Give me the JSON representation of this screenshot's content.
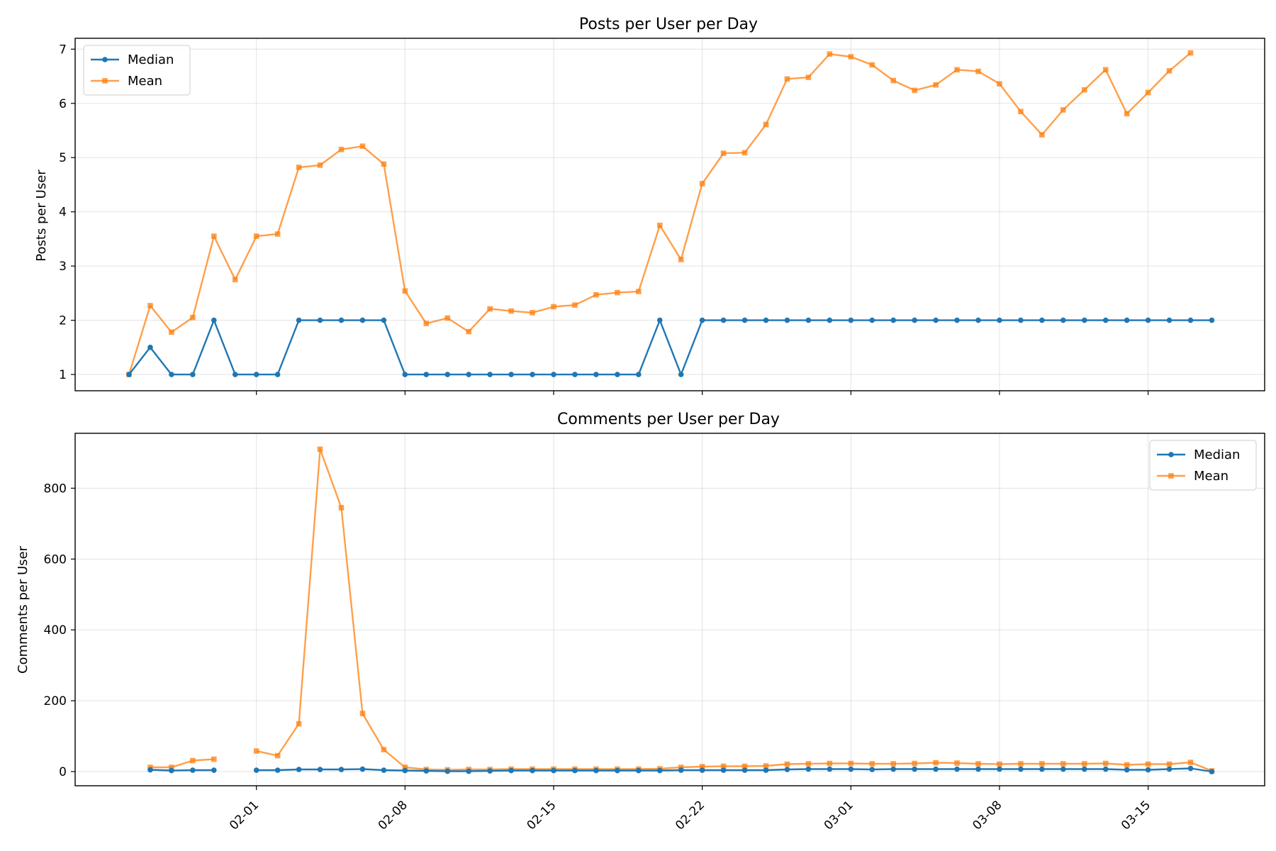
{
  "colors": {
    "median": "#1f77b4",
    "mean": "#ff7f0e"
  },
  "chart_data": [
    {
      "type": "line",
      "title": "Posts per User per Day",
      "xlabel": "",
      "ylabel": "Posts per User",
      "ylim": [
        0.7,
        7.2
      ],
      "yticks": [
        1,
        2,
        3,
        4,
        5,
        6,
        7
      ],
      "grid": true,
      "legend": "top-left",
      "x": [
        "01-26",
        "01-27",
        "01-28",
        "01-29",
        "01-30",
        "01-31",
        "02-01",
        "02-02",
        "02-03",
        "02-04",
        "02-05",
        "02-06",
        "02-07",
        "02-08",
        "02-09",
        "02-10",
        "02-11",
        "02-12",
        "02-13",
        "02-14",
        "02-15",
        "02-16",
        "02-17",
        "02-18",
        "02-19",
        "02-20",
        "02-21",
        "02-22",
        "02-23",
        "02-24",
        "02-25",
        "02-26",
        "02-27",
        "02-28",
        "03-01",
        "03-02",
        "03-03",
        "03-04",
        "03-05",
        "03-06",
        "03-07",
        "03-08",
        "03-09",
        "03-10",
        "03-11",
        "03-12",
        "03-13",
        "03-14",
        "03-15",
        "03-16",
        "03-17",
        "03-18"
      ],
      "series": [
        {
          "name": "Median",
          "marker": "circle",
          "values": [
            1,
            1.5,
            1,
            1,
            2,
            1,
            1,
            1,
            2,
            2,
            2,
            2,
            2,
            1,
            1,
            1,
            1,
            1,
            1,
            1,
            1,
            1,
            1,
            1,
            1,
            2,
            1,
            2,
            2,
            2,
            2,
            2,
            2,
            2,
            2,
            2,
            2,
            2,
            2,
            2,
            2,
            2,
            2,
            2,
            2,
            2,
            2,
            2,
            2,
            2,
            2,
            2
          ]
        },
        {
          "name": "Mean",
          "marker": "square",
          "values": [
            1,
            2.27,
            1.78,
            2.05,
            3.55,
            2.75,
            3.55,
            3.59,
            4.82,
            4.86,
            5.15,
            5.21,
            4.88,
            2.54,
            1.94,
            2.04,
            1.79,
            2.21,
            2.17,
            2.14,
            2.25,
            2.28,
            2.47,
            2.51,
            2.53,
            3.75,
            3.12,
            4.52,
            5.08,
            5.09,
            5.61,
            6.45,
            6.48,
            6.91,
            6.86,
            6.71,
            6.42,
            6.24,
            6.34,
            6.62,
            6.59,
            6.36,
            5.85,
            5.42,
            5.88,
            6.25,
            6.62,
            5.81,
            6.2,
            6.6,
            6.93,
            null
          ]
        }
      ]
    },
    {
      "type": "line",
      "title": "Comments per User per Day",
      "xlabel": "",
      "ylabel": "Comments per User",
      "ylim": [
        -40,
        955
      ],
      "yticks": [
        0,
        200,
        400,
        600,
        800
      ],
      "grid": true,
      "legend": "top-right",
      "x": [
        "01-26",
        "01-27",
        "01-28",
        "01-29",
        "01-30",
        "01-31",
        "02-01",
        "02-02",
        "02-03",
        "02-04",
        "02-05",
        "02-06",
        "02-07",
        "02-08",
        "02-09",
        "02-10",
        "02-11",
        "02-12",
        "02-13",
        "02-14",
        "02-15",
        "02-16",
        "02-17",
        "02-18",
        "02-19",
        "02-20",
        "02-21",
        "02-22",
        "02-23",
        "02-24",
        "02-25",
        "02-26",
        "02-27",
        "02-28",
        "03-01",
        "03-02",
        "03-03",
        "03-04",
        "03-05",
        "03-06",
        "03-07",
        "03-08",
        "03-09",
        "03-10",
        "03-11",
        "03-12",
        "03-13",
        "03-14",
        "03-15",
        "03-16",
        "03-17",
        "03-18"
      ],
      "series": [
        {
          "name": "Median",
          "marker": "circle",
          "values": [
            null,
            5,
            3,
            4,
            4,
            null,
            4,
            4,
            6,
            6,
            6,
            7,
            4,
            3,
            2,
            1,
            1,
            2,
            3,
            3,
            3,
            3,
            3,
            3,
            3,
            3,
            4,
            4,
            4,
            4,
            4,
            6,
            7,
            7,
            7,
            6,
            7,
            7,
            7,
            7,
            7,
            7,
            7,
            7,
            7,
            7,
            7,
            5,
            5,
            7,
            9,
            0
          ]
        },
        {
          "name": "Mean",
          "marker": "square",
          "values": [
            null,
            12,
            12,
            31,
            35,
            null,
            58,
            45,
            135,
            910,
            745,
            164,
            62,
            12,
            6,
            5,
            6,
            6,
            7,
            7,
            7,
            7,
            7,
            7,
            7,
            8,
            12,
            14,
            15,
            15,
            16,
            21,
            22,
            23,
            23,
            22,
            22,
            23,
            25,
            24,
            22,
            21,
            22,
            22,
            22,
            22,
            23,
            19,
            21,
            21,
            26,
            2
          ]
        }
      ]
    }
  ],
  "xaxis": {
    "tick_labels": [
      "02-01",
      "02-08",
      "02-15",
      "02-22",
      "03-01",
      "03-08",
      "03-15"
    ]
  }
}
